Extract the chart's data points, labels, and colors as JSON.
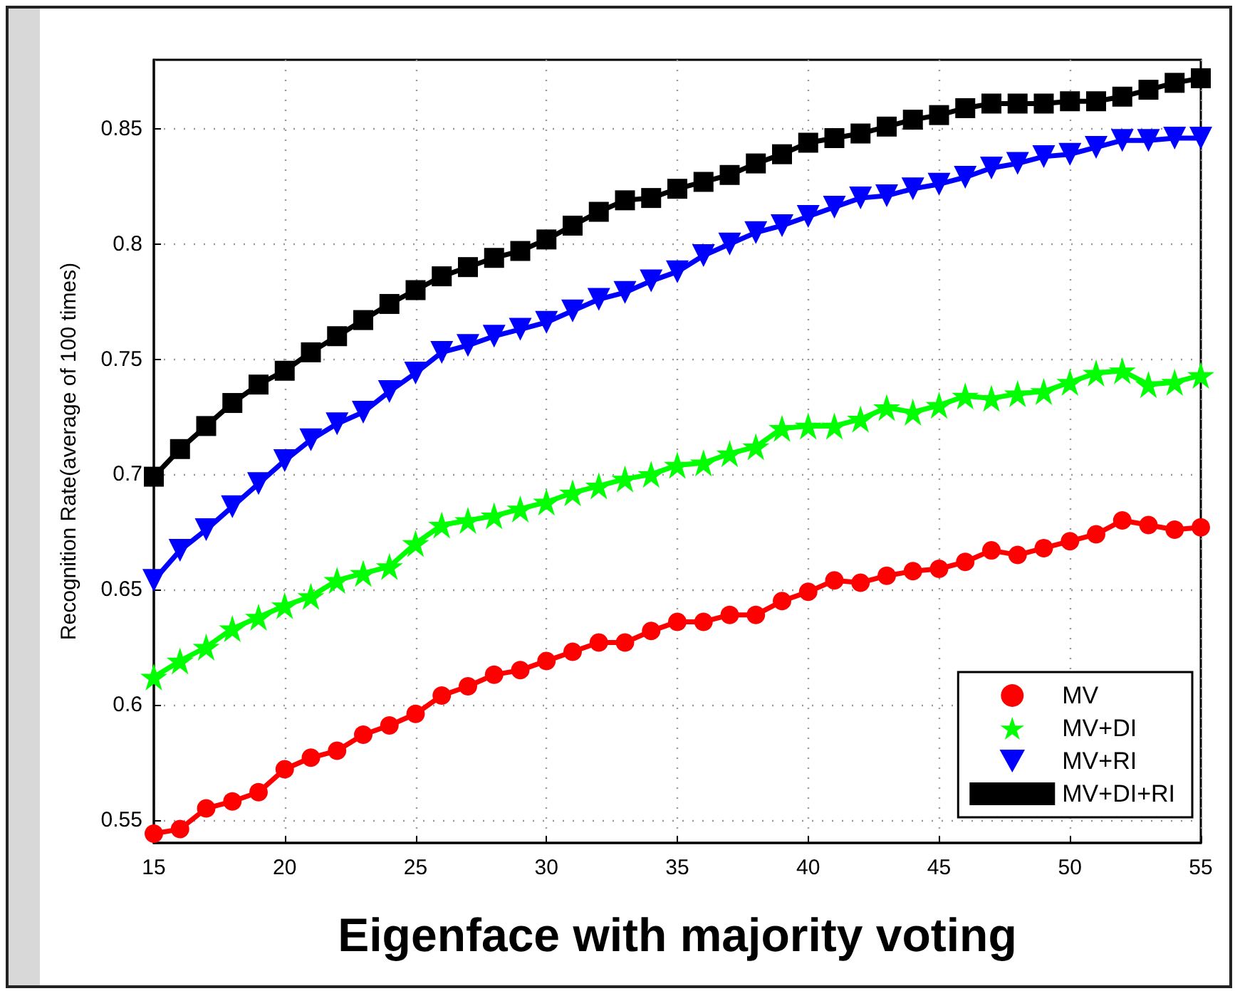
{
  "chart_data": {
    "type": "line",
    "xlabel": "Eigenface with majority voting",
    "ylabel": "Recognition Rate(average of 100 times)",
    "x": [
      15,
      16,
      17,
      18,
      19,
      20,
      21,
      22,
      23,
      24,
      25,
      26,
      27,
      28,
      29,
      30,
      31,
      32,
      33,
      34,
      35,
      36,
      37,
      38,
      39,
      40,
      41,
      42,
      43,
      44,
      45,
      46,
      47,
      48,
      49,
      50,
      51,
      52,
      53,
      54,
      55
    ],
    "series": [
      {
        "name": "MV",
        "color": "#ff0000",
        "marker": "circle",
        "values": [
          0.544,
          0.546,
          0.555,
          0.558,
          0.562,
          0.572,
          0.577,
          0.58,
          0.587,
          0.591,
          0.596,
          0.604,
          0.608,
          0.613,
          0.615,
          0.619,
          0.623,
          0.627,
          0.627,
          0.632,
          0.636,
          0.636,
          0.639,
          0.639,
          0.645,
          0.649,
          0.654,
          0.653,
          0.656,
          0.658,
          0.659,
          0.662,
          0.667,
          0.665,
          0.668,
          0.671,
          0.674,
          0.68,
          0.678,
          0.676,
          0.677
        ]
      },
      {
        "name": "MV+DI",
        "color": "#00ff00",
        "marker": "star",
        "values": [
          0.612,
          0.619,
          0.625,
          0.633,
          0.638,
          0.643,
          0.647,
          0.654,
          0.657,
          0.66,
          0.67,
          0.678,
          0.68,
          0.682,
          0.685,
          0.688,
          0.692,
          0.695,
          0.698,
          0.7,
          0.704,
          0.705,
          0.709,
          0.712,
          0.72,
          0.721,
          0.721,
          0.724,
          0.729,
          0.727,
          0.73,
          0.734,
          0.733,
          0.735,
          0.736,
          0.74,
          0.744,
          0.745,
          0.739,
          0.74,
          0.743
        ]
      },
      {
        "name": "MV+RI",
        "color": "#0000ff",
        "marker": "triangle",
        "values": [
          0.654,
          0.667,
          0.676,
          0.686,
          0.696,
          0.706,
          0.715,
          0.722,
          0.727,
          0.736,
          0.744,
          0.753,
          0.756,
          0.76,
          0.763,
          0.766,
          0.771,
          0.776,
          0.779,
          0.784,
          0.788,
          0.795,
          0.8,
          0.805,
          0.808,
          0.812,
          0.816,
          0.82,
          0.821,
          0.824,
          0.826,
          0.829,
          0.833,
          0.835,
          0.838,
          0.839,
          0.842,
          0.845,
          0.845,
          0.846,
          0.846
        ]
      },
      {
        "name": "MV+DI+RI",
        "color": "#000000",
        "marker": "square",
        "values": [
          0.699,
          0.711,
          0.721,
          0.731,
          0.739,
          0.745,
          0.753,
          0.76,
          0.767,
          0.774,
          0.78,
          0.786,
          0.79,
          0.794,
          0.797,
          0.802,
          0.808,
          0.814,
          0.819,
          0.82,
          0.824,
          0.827,
          0.83,
          0.835,
          0.839,
          0.844,
          0.846,
          0.848,
          0.851,
          0.854,
          0.856,
          0.859,
          0.861,
          0.861,
          0.861,
          0.862,
          0.862,
          0.864,
          0.867,
          0.87,
          0.872
        ]
      }
    ],
    "xlim": [
      15,
      55
    ],
    "xticks": [
      15,
      20,
      25,
      30,
      35,
      40,
      45,
      50,
      55
    ],
    "ylim": [
      0.54,
      0.88
    ],
    "yticks": [
      0.55,
      0.6,
      0.65,
      0.7,
      0.75,
      0.8,
      0.85
    ],
    "grid": true,
    "legend": "bottom right",
    "line_style": "solid"
  }
}
